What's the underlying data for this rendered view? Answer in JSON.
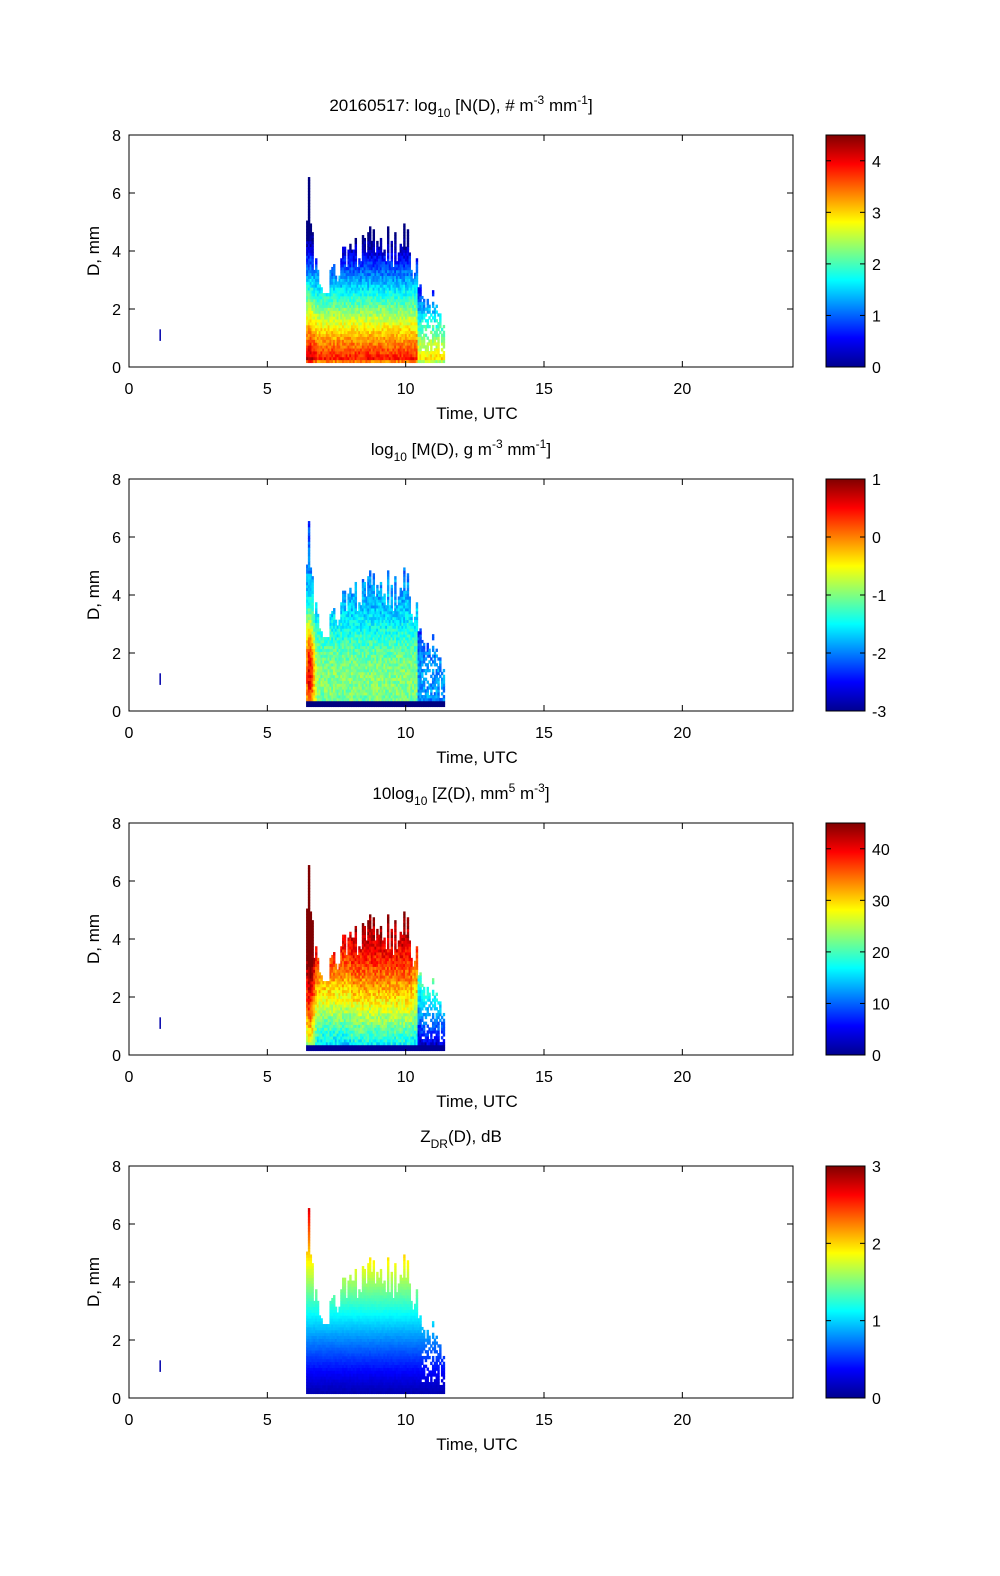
{
  "chart_data": [
    {
      "type": "heatmap",
      "date_label": "20160517:",
      "title": {
        "pre": "log",
        "sub": "10",
        "mid": " [N(D), # m",
        "sup1": "-3",
        "mid2": " mm",
        "sup2": "-1",
        "post": "]"
      },
      "xlabel": "Time, UTC",
      "ylabel": "D, mm",
      "xlim": [
        0,
        24
      ],
      "ylim": [
        0,
        8
      ],
      "xticks": [
        0,
        5,
        10,
        15,
        20
      ],
      "yticks": [
        0,
        2,
        4,
        6,
        8
      ],
      "colorbar": {
        "range": [
          0,
          4.5
        ],
        "ticks": [
          0,
          1,
          2,
          3,
          4
        ]
      },
      "value_field": "log10 N(D)"
    },
    {
      "type": "heatmap",
      "title": {
        "pre": "log",
        "sub": "10",
        "mid": " [M(D), g m",
        "sup1": "-3",
        "mid2": " mm",
        "sup2": "-1",
        "post": "]"
      },
      "xlabel": "Time, UTC",
      "ylabel": "D, mm",
      "xlim": [
        0,
        24
      ],
      "ylim": [
        0,
        8
      ],
      "xticks": [
        0,
        5,
        10,
        15,
        20
      ],
      "yticks": [
        0,
        2,
        4,
        6,
        8
      ],
      "colorbar": {
        "range": [
          -3,
          1
        ],
        "ticks": [
          -3,
          -2,
          -1,
          0,
          1
        ]
      },
      "value_field": "log10 M(D)"
    },
    {
      "type": "heatmap",
      "title": {
        "pre": "10log",
        "sub": "10",
        "mid": " [Z(D),  mm",
        "sup1": "5",
        "mid2": " m",
        "sup2": "-3",
        "post": "]"
      },
      "xlabel": "Time, UTC",
      "ylabel": "D, mm",
      "xlim": [
        0,
        24
      ],
      "ylim": [
        0,
        8
      ],
      "xticks": [
        0,
        5,
        10,
        15,
        20
      ],
      "yticks": [
        0,
        2,
        4,
        6,
        8
      ],
      "colorbar": {
        "range": [
          0,
          45
        ],
        "ticks": [
          0,
          10,
          20,
          30,
          40
        ]
      },
      "value_field": "10log10 Z(D)"
    },
    {
      "type": "heatmap",
      "title": {
        "pre": "Z",
        "sub": "DR",
        "mid": "(D), dB",
        "sup1": "",
        "mid2": "",
        "sup2": "",
        "post": ""
      },
      "xlabel": "Time, UTC",
      "ylabel": "D, mm",
      "xlim": [
        0,
        24
      ],
      "ylim": [
        0,
        8
      ],
      "xticks": [
        0,
        5,
        10,
        15,
        20
      ],
      "yticks": [
        0,
        2,
        4,
        6,
        8
      ],
      "colorbar": {
        "range": [
          0,
          3
        ],
        "ticks": [
          0,
          1,
          2,
          3
        ]
      },
      "value_field": "ZDR(D)"
    }
  ],
  "dsd_observations": {
    "isolated_time": 1.1,
    "isolated_d_range": [
      0.9,
      1.3
    ],
    "event_start": 6.4,
    "event_end": 11.4,
    "event_min_d": 0.15,
    "spike_time": 6.5,
    "spike_max_d": 6.3,
    "columns_time": [
      6.4,
      6.5,
      6.6,
      6.8,
      7.0,
      7.3,
      7.6,
      7.9,
      8.2,
      8.5,
      8.8,
      9.1,
      9.4,
      9.7,
      10.0,
      10.2,
      10.4,
      10.6,
      10.8,
      11.0,
      11.2,
      11.4
    ],
    "columns_max_d": [
      5.0,
      6.3,
      4.2,
      3.2,
      2.8,
      3.0,
      3.6,
      3.9,
      4.0,
      4.3,
      4.4,
      4.2,
      4.3,
      4.0,
      4.6,
      3.5,
      3.3,
      2.4,
      2.0,
      2.5,
      1.9,
      1.1
    ]
  }
}
